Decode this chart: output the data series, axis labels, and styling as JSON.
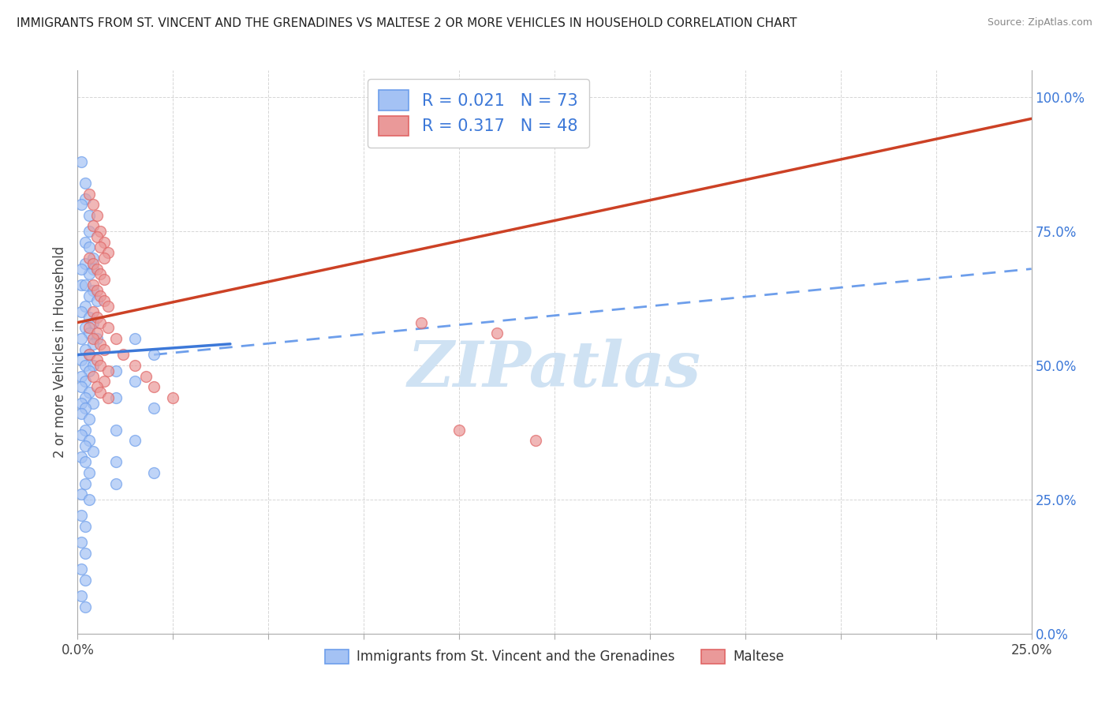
{
  "title": "IMMIGRANTS FROM ST. VINCENT AND THE GRENADINES VS MALTESE 2 OR MORE VEHICLES IN HOUSEHOLD CORRELATION CHART",
  "source": "Source: ZipAtlas.com",
  "ylabel": "2 or more Vehicles in Household",
  "xmin": 0.0,
  "xmax": 0.25,
  "ymin": 0.0,
  "ymax": 1.05,
  "x_ticks": [
    0.0,
    0.025,
    0.05,
    0.075,
    0.1,
    0.125,
    0.15,
    0.175,
    0.2,
    0.225,
    0.25
  ],
  "x_tick_labels_show": {
    "0.0": "0.0%",
    "0.25": "25.0%"
  },
  "y_tick_labels_right": [
    "0.0%",
    "25.0%",
    "50.0%",
    "75.0%",
    "100.0%"
  ],
  "y_ticks_right": [
    0.0,
    0.25,
    0.5,
    0.75,
    1.0
  ],
  "legend_R1": "0.021",
  "legend_N1": "73",
  "legend_R2": "0.317",
  "legend_N2": "48",
  "blue_scatter_color": "#a4c2f4",
  "pink_scatter_color": "#ea9999",
  "blue_edge_color": "#6d9eeb",
  "pink_edge_color": "#e06666",
  "blue_line_color": "#3c78d8",
  "pink_line_color": "#cc4125",
  "dashed_line_color": "#6d9eeb",
  "watermark_text": "ZIPatlas",
  "watermark_color": "#cfe2f3",
  "scatter_blue": [
    [
      0.001,
      0.88
    ],
    [
      0.002,
      0.84
    ],
    [
      0.002,
      0.81
    ],
    [
      0.001,
      0.8
    ],
    [
      0.003,
      0.78
    ],
    [
      0.003,
      0.75
    ],
    [
      0.002,
      0.73
    ],
    [
      0.003,
      0.72
    ],
    [
      0.004,
      0.7
    ],
    [
      0.002,
      0.69
    ],
    [
      0.004,
      0.68
    ],
    [
      0.003,
      0.67
    ],
    [
      0.001,
      0.65
    ],
    [
      0.002,
      0.65
    ],
    [
      0.004,
      0.64
    ],
    [
      0.003,
      0.63
    ],
    [
      0.005,
      0.62
    ],
    [
      0.002,
      0.61
    ],
    [
      0.001,
      0.6
    ],
    [
      0.003,
      0.59
    ],
    [
      0.004,
      0.58
    ],
    [
      0.002,
      0.57
    ],
    [
      0.003,
      0.56
    ],
    [
      0.001,
      0.55
    ],
    [
      0.005,
      0.55
    ],
    [
      0.004,
      0.54
    ],
    [
      0.002,
      0.53
    ],
    [
      0.003,
      0.52
    ],
    [
      0.001,
      0.51
    ],
    [
      0.002,
      0.5
    ],
    [
      0.004,
      0.5
    ],
    [
      0.003,
      0.49
    ],
    [
      0.001,
      0.48
    ],
    [
      0.002,
      0.47
    ],
    [
      0.001,
      0.46
    ],
    [
      0.003,
      0.45
    ],
    [
      0.002,
      0.44
    ],
    [
      0.001,
      0.43
    ],
    [
      0.004,
      0.43
    ],
    [
      0.002,
      0.42
    ],
    [
      0.001,
      0.41
    ],
    [
      0.003,
      0.4
    ],
    [
      0.002,
      0.38
    ],
    [
      0.001,
      0.37
    ],
    [
      0.003,
      0.36
    ],
    [
      0.002,
      0.35
    ],
    [
      0.004,
      0.34
    ],
    [
      0.001,
      0.33
    ],
    [
      0.002,
      0.32
    ],
    [
      0.003,
      0.3
    ],
    [
      0.002,
      0.28
    ],
    [
      0.001,
      0.26
    ],
    [
      0.003,
      0.25
    ],
    [
      0.001,
      0.22
    ],
    [
      0.002,
      0.2
    ],
    [
      0.001,
      0.17
    ],
    [
      0.002,
      0.15
    ],
    [
      0.001,
      0.12
    ],
    [
      0.002,
      0.1
    ],
    [
      0.001,
      0.07
    ],
    [
      0.002,
      0.05
    ],
    [
      0.015,
      0.55
    ],
    [
      0.02,
      0.52
    ],
    [
      0.01,
      0.49
    ],
    [
      0.015,
      0.47
    ],
    [
      0.01,
      0.44
    ],
    [
      0.02,
      0.42
    ],
    [
      0.01,
      0.38
    ],
    [
      0.015,
      0.36
    ],
    [
      0.01,
      0.32
    ],
    [
      0.02,
      0.3
    ],
    [
      0.01,
      0.28
    ],
    [
      0.001,
      0.68
    ]
  ],
  "scatter_pink": [
    [
      0.003,
      0.82
    ],
    [
      0.004,
      0.8
    ],
    [
      0.005,
      0.78
    ],
    [
      0.004,
      0.76
    ],
    [
      0.006,
      0.75
    ],
    [
      0.005,
      0.74
    ],
    [
      0.007,
      0.73
    ],
    [
      0.006,
      0.72
    ],
    [
      0.008,
      0.71
    ],
    [
      0.007,
      0.7
    ],
    [
      0.003,
      0.7
    ],
    [
      0.004,
      0.69
    ],
    [
      0.005,
      0.68
    ],
    [
      0.006,
      0.67
    ],
    [
      0.007,
      0.66
    ],
    [
      0.004,
      0.65
    ],
    [
      0.005,
      0.64
    ],
    [
      0.006,
      0.63
    ],
    [
      0.007,
      0.62
    ],
    [
      0.008,
      0.61
    ],
    [
      0.004,
      0.6
    ],
    [
      0.005,
      0.59
    ],
    [
      0.006,
      0.58
    ],
    [
      0.003,
      0.57
    ],
    [
      0.008,
      0.57
    ],
    [
      0.005,
      0.56
    ],
    [
      0.004,
      0.55
    ],
    [
      0.006,
      0.54
    ],
    [
      0.007,
      0.53
    ],
    [
      0.003,
      0.52
    ],
    [
      0.005,
      0.51
    ],
    [
      0.006,
      0.5
    ],
    [
      0.008,
      0.49
    ],
    [
      0.004,
      0.48
    ],
    [
      0.007,
      0.47
    ],
    [
      0.005,
      0.46
    ],
    [
      0.006,
      0.45
    ],
    [
      0.008,
      0.44
    ],
    [
      0.01,
      0.55
    ],
    [
      0.012,
      0.52
    ],
    [
      0.015,
      0.5
    ],
    [
      0.018,
      0.48
    ],
    [
      0.02,
      0.46
    ],
    [
      0.025,
      0.44
    ],
    [
      0.1,
      0.38
    ],
    [
      0.12,
      0.36
    ],
    [
      0.09,
      0.58
    ],
    [
      0.11,
      0.56
    ]
  ],
  "blue_trend_x": [
    0.0,
    0.04
  ],
  "blue_trend_y": [
    0.52,
    0.54
  ],
  "pink_trend_x": [
    0.0,
    0.25
  ],
  "pink_trend_y": [
    0.58,
    0.96
  ],
  "dashed_trend_x": [
    0.02,
    0.25
  ],
  "dashed_trend_y": [
    0.52,
    0.68
  ]
}
